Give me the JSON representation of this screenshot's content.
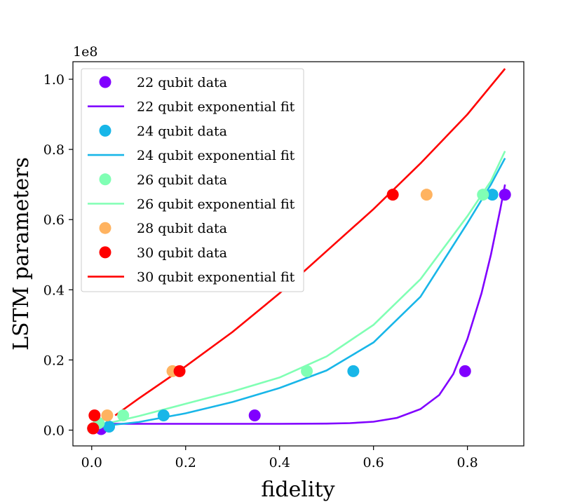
{
  "chart_data": {
    "type": "scatter",
    "title": "",
    "xlabel": "fidelity",
    "ylabel": "LSTM parameters",
    "offset_text": "1e8",
    "xlim": [
      -0.04,
      0.92
    ],
    "ylim": [
      -0.45,
      10.5
    ],
    "y_scale_note": "y values in units of 1e7 (axis shows 1e8 multiplier)",
    "x_ticks": [
      0.0,
      0.2,
      0.4,
      0.6,
      0.8
    ],
    "x_tick_labels": [
      "0.0",
      "0.2",
      "0.4",
      "0.6",
      "0.8"
    ],
    "y_ticks": [
      0,
      2,
      4,
      6,
      8,
      10
    ],
    "y_tick_labels": [
      "0.0",
      "0.2",
      "0.4",
      "0.6",
      "0.8",
      "1.0"
    ],
    "grid": false,
    "legend_position": "top-left",
    "series": [
      {
        "name": "22 qubit",
        "color": "#8000ff",
        "data_label": "22 qubit data",
        "fit_label": "22 qubit exponential fit",
        "points": [
          [
            0.003,
            0.05
          ],
          [
            0.02,
            0.03
          ],
          [
            0.347,
            0.42
          ],
          [
            0.795,
            1.68
          ],
          [
            0.88,
            6.71
          ]
        ],
        "fit_curve": [
          [
            0.02,
            0.18
          ],
          [
            0.2,
            0.18
          ],
          [
            0.4,
            0.18
          ],
          [
            0.5,
            0.185
          ],
          [
            0.55,
            0.2
          ],
          [
            0.6,
            0.24
          ],
          [
            0.65,
            0.35
          ],
          [
            0.7,
            0.6
          ],
          [
            0.74,
            1.0
          ],
          [
            0.77,
            1.6
          ],
          [
            0.8,
            2.6
          ],
          [
            0.83,
            3.9
          ],
          [
            0.85,
            5.0
          ],
          [
            0.87,
            6.3
          ],
          [
            0.88,
            7.0
          ]
        ]
      },
      {
        "name": "24 qubit",
        "color": "#18b6e8",
        "data_label": "24 qubit data",
        "fit_label": "24 qubit exponential fit",
        "points": [
          [
            0.003,
            0.05
          ],
          [
            0.037,
            0.1
          ],
          [
            0.153,
            0.42
          ],
          [
            0.557,
            1.68
          ],
          [
            0.853,
            6.71
          ]
        ],
        "fit_curve": [
          [
            0.01,
            0.1
          ],
          [
            0.1,
            0.23
          ],
          [
            0.2,
            0.48
          ],
          [
            0.3,
            0.8
          ],
          [
            0.4,
            1.2
          ],
          [
            0.5,
            1.7
          ],
          [
            0.6,
            2.5
          ],
          [
            0.7,
            3.8
          ],
          [
            0.8,
            5.9
          ],
          [
            0.85,
            7.0
          ],
          [
            0.88,
            7.75
          ]
        ]
      },
      {
        "name": "26 qubit",
        "color": "#80ffb4",
        "data_label": "26 qubit data",
        "fit_label": "26 qubit exponential fit",
        "points": [
          [
            0.003,
            0.05
          ],
          [
            0.015,
            0.2
          ],
          [
            0.067,
            0.42
          ],
          [
            0.458,
            1.68
          ],
          [
            0.833,
            6.71
          ]
        ],
        "fit_curve": [
          [
            0.01,
            0.12
          ],
          [
            0.1,
            0.4
          ],
          [
            0.2,
            0.75
          ],
          [
            0.3,
            1.1
          ],
          [
            0.4,
            1.5
          ],
          [
            0.5,
            2.1
          ],
          [
            0.6,
            3.0
          ],
          [
            0.7,
            4.3
          ],
          [
            0.8,
            6.1
          ],
          [
            0.85,
            7.1
          ],
          [
            0.88,
            7.95
          ]
        ]
      },
      {
        "name": "28 qubit",
        "color": "#ffb360",
        "data_label": "28 qubit data",
        "fit_label": null,
        "points": [
          [
            0.003,
            0.05
          ],
          [
            0.033,
            0.42
          ],
          [
            0.172,
            1.68
          ],
          [
            0.713,
            6.71
          ]
        ],
        "fit_curve": []
      },
      {
        "name": "30 qubit",
        "color": "#ff0000",
        "data_label": "30 qubit data",
        "fit_label": "30 qubit exponential fit",
        "points": [
          [
            0.003,
            0.05
          ],
          [
            0.006,
            0.42
          ],
          [
            0.187,
            1.68
          ],
          [
            0.641,
            6.71
          ]
        ],
        "fit_curve": [
          [
            0.05,
            0.42
          ],
          [
            0.1,
            0.9
          ],
          [
            0.2,
            1.82
          ],
          [
            0.3,
            2.8
          ],
          [
            0.4,
            3.9
          ],
          [
            0.5,
            5.1
          ],
          [
            0.6,
            6.3
          ],
          [
            0.7,
            7.6
          ],
          [
            0.8,
            9.0
          ],
          [
            0.88,
            10.3
          ]
        ]
      }
    ]
  }
}
